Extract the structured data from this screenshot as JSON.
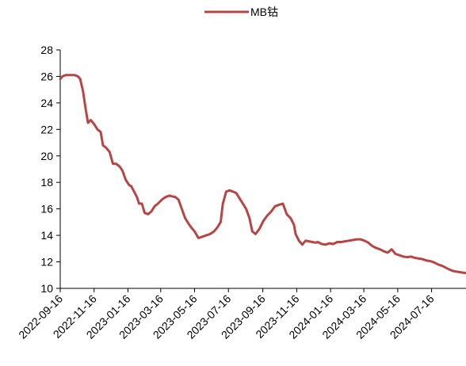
{
  "chart_data": {
    "type": "line",
    "title": "",
    "xlabel": "",
    "ylabel": "",
    "ylim": [
      10,
      28
    ],
    "yticks": [
      10,
      12,
      14,
      16,
      18,
      20,
      22,
      24,
      26,
      28
    ],
    "xlim": [
      "2022-09-16",
      "2024-09-16"
    ],
    "xticks": [
      "2022-09-16",
      "2022-11-16",
      "2023-01-16",
      "2023-03-16",
      "2023-05-16",
      "2023-07-16",
      "2023-09-16",
      "2023-11-16",
      "2024-01-16",
      "2024-03-16",
      "2024-05-16",
      "2024-07-16"
    ],
    "legend_position": "top-center",
    "grid": false,
    "series": [
      {
        "name": "MB钴",
        "color": "#b84544",
        "x": [
          "2022-09-16",
          "2022-09-20",
          "2022-09-26",
          "2022-10-05",
          "2022-10-12",
          "2022-10-18",
          "2022-10-22",
          "2022-10-27",
          "2022-11-01",
          "2022-11-05",
          "2022-11-10",
          "2022-11-16",
          "2022-11-22",
          "2022-11-28",
          "2022-12-02",
          "2022-12-08",
          "2022-12-14",
          "2022-12-20",
          "2022-12-26",
          "2023-01-01",
          "2023-01-06",
          "2023-01-12",
          "2023-01-18",
          "2023-01-22",
          "2023-01-27",
          "2023-02-01",
          "2023-02-05",
          "2023-02-10",
          "2023-02-15",
          "2023-02-21",
          "2023-02-27",
          "2023-03-05",
          "2023-03-11",
          "2023-03-18",
          "2023-03-25",
          "2023-04-01",
          "2023-04-05",
          "2023-04-11",
          "2023-04-17",
          "2023-04-23",
          "2023-04-29",
          "2023-05-05",
          "2023-05-10",
          "2023-05-16",
          "2023-05-23",
          "2023-05-30",
          "2023-06-06",
          "2023-06-13",
          "2023-06-20",
          "2023-06-26",
          "2023-07-02",
          "2023-07-06",
          "2023-07-12",
          "2023-07-18",
          "2023-07-24",
          "2023-07-30",
          "2023-08-05",
          "2023-08-11",
          "2023-08-17",
          "2023-08-23",
          "2023-08-28",
          "2023-09-03",
          "2023-09-10",
          "2023-09-17",
          "2023-09-24",
          "2023-10-01",
          "2023-10-08",
          "2023-10-15",
          "2023-10-22",
          "2023-10-29",
          "2023-11-05",
          "2023-11-11",
          "2023-11-14",
          "2023-11-20",
          "2023-11-26",
          "2023-12-02",
          "2023-12-08",
          "2023-12-14",
          "2023-12-20",
          "2023-12-24",
          "2023-12-31",
          "2024-01-07",
          "2024-01-14",
          "2024-01-21",
          "2024-01-28",
          "2024-02-04",
          "2024-02-11",
          "2024-02-18",
          "2024-02-25",
          "2024-03-03",
          "2024-03-10",
          "2024-03-17",
          "2024-03-24",
          "2024-03-31",
          "2024-04-07",
          "2024-04-14",
          "2024-04-21",
          "2024-04-28",
          "2024-05-05",
          "2024-05-12",
          "2024-05-19",
          "2024-05-26",
          "2024-06-02",
          "2024-06-09",
          "2024-06-16",
          "2024-06-23",
          "2024-06-30",
          "2024-07-07",
          "2024-07-14",
          "2024-07-21",
          "2024-07-28",
          "2024-08-04",
          "2024-08-11",
          "2024-08-18",
          "2024-08-25",
          "2024-09-01",
          "2024-09-08",
          "2024-09-16"
        ],
        "values": [
          25.8,
          26.0,
          26.1,
          26.1,
          26.1,
          26.0,
          25.8,
          24.9,
          23.5,
          22.5,
          22.7,
          22.4,
          22.0,
          21.8,
          20.8,
          20.6,
          20.3,
          19.4,
          19.4,
          19.2,
          18.9,
          18.2,
          17.8,
          17.7,
          17.3,
          16.9,
          16.4,
          16.4,
          15.7,
          15.6,
          15.8,
          16.2,
          16.4,
          16.7,
          16.9,
          17.0,
          16.95,
          16.9,
          16.7,
          16.0,
          15.3,
          14.9,
          14.6,
          14.3,
          13.8,
          13.9,
          14.0,
          14.1,
          14.3,
          14.6,
          15.0,
          16.4,
          17.3,
          17.4,
          17.3,
          17.2,
          16.8,
          16.4,
          16.0,
          15.3,
          14.3,
          14.1,
          14.5,
          15.1,
          15.5,
          15.8,
          16.2,
          16.3,
          16.4,
          15.6,
          15.3,
          14.8,
          14.1,
          13.6,
          13.3,
          13.6,
          13.55,
          13.5,
          13.45,
          13.5,
          13.35,
          13.3,
          13.4,
          13.35,
          13.5,
          13.5,
          13.55,
          13.6,
          13.65,
          13.7,
          13.7,
          13.6,
          13.45,
          13.2,
          13.05,
          12.95,
          12.8,
          12.7,
          12.95,
          12.6,
          12.5,
          12.4,
          12.35,
          12.4,
          12.3,
          12.25,
          12.2,
          12.1,
          12.05,
          11.95,
          11.8,
          11.7,
          11.55,
          11.4,
          11.3,
          11.25,
          11.2,
          11.15
        ]
      }
    ]
  }
}
